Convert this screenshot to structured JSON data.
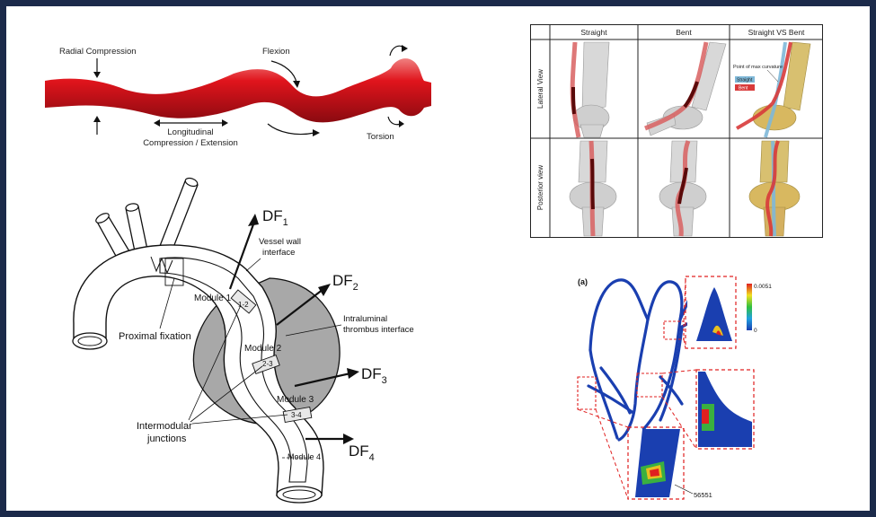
{
  "vessel_panel": {
    "radial_compression": "Radial Compression",
    "flexion": "Flexion",
    "longitudinal_line1": "Longitudinal",
    "longitudinal_line2": "Compression / Extension",
    "torsion": "Torsion",
    "vessel_color": "#d8141c"
  },
  "aorta_panel": {
    "df1": "DF",
    "df1_sub": "1",
    "df2": "DF",
    "df2_sub": "2",
    "df3": "DF",
    "df3_sub": "3",
    "df4": "DF",
    "df4_sub": "4",
    "vessel_wall_line1": "Vessel wall",
    "vessel_wall_line2": "interface",
    "module1": "Module 1",
    "module2": "Module 2",
    "module3": "Module 3",
    "module4": "Module 4",
    "junction12": "1-2",
    "junction23": "2-3",
    "junction34": "3-4",
    "proximal_fixation": "Proximal fixation",
    "intraluminal_line1": "Intraluminal",
    "intraluminal_line2": "thrombus interface",
    "intermodular_line1": "Intermodular",
    "intermodular_line2": "junctions"
  },
  "knee_table": {
    "columns": [
      "Straight",
      "Bent",
      "Straight VS Bent"
    ],
    "rows": [
      "Lateral View",
      "Posterior view"
    ],
    "point_max_curvature": "Point of max curvature",
    "legend_straight": "Straight",
    "legend_bent": "Bent",
    "straight_color": "#7fb8d8",
    "bent_color": "#d83a3a"
  },
  "stent_fea": {
    "panel_label": "(a)",
    "scale_max": "0.0051",
    "scale_min": "0",
    "node_label": "56551",
    "frame_color": "#1a3fb0"
  }
}
